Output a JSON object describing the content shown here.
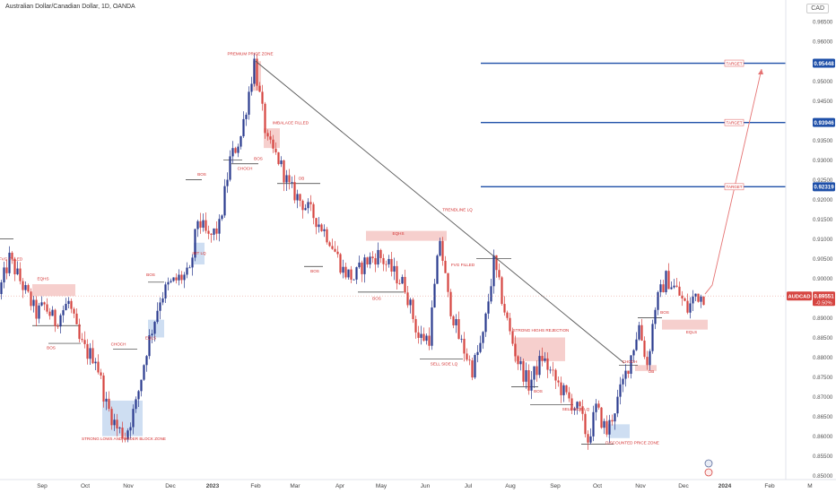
{
  "header": {
    "title": "Australian Dollar/Canadian Dollar, 1D, OANDA",
    "currency": "CAD"
  },
  "colors": {
    "up": "#2b3c8f",
    "down": "#d64541",
    "level": "#1e4fa8",
    "trendline": "#555555",
    "zone_red": "#f4c7c4",
    "zone_blue": "#c6d8f0",
    "label_red": "#d32f2f"
  },
  "chart_data": {
    "type": "candlestick",
    "symbol": "AUDCAD",
    "x_labels": [
      "Sep",
      "Oct",
      "Nov",
      "Dec",
      "2023",
      "Feb",
      "Mar",
      "Apr",
      "May",
      "Jun",
      "Jul",
      "Aug",
      "Sep",
      "Oct",
      "Nov",
      "Dec",
      "2024",
      "Feb",
      "M"
    ],
    "y_ticks": [
      "0.96500",
      "0.96000",
      "0.95500",
      "0.95000",
      "0.94500",
      "0.94000",
      "0.93500",
      "0.93000",
      "0.92500",
      "0.92000",
      "0.91500",
      "0.91000",
      "0.90500",
      "0.90000",
      "0.89500",
      "0.89000",
      "0.88500",
      "0.88000",
      "0.87500",
      "0.87000",
      "0.86500",
      "0.86000",
      "0.85500",
      "0.85000"
    ],
    "ylim": [
      0.849,
      0.9705
    ],
    "anchors": [
      {
        "i": 0,
        "p": 0.896
      },
      {
        "i": 4,
        "p": 0.905
      },
      {
        "i": 9,
        "p": 0.898
      },
      {
        "i": 14,
        "p": 0.891
      },
      {
        "i": 17,
        "p": 0.893
      },
      {
        "i": 21,
        "p": 0.889
      },
      {
        "i": 26,
        "p": 0.894
      },
      {
        "i": 30,
        "p": 0.884
      },
      {
        "i": 33,
        "p": 0.881
      },
      {
        "i": 36,
        "p": 0.88
      },
      {
        "i": 40,
        "p": 0.868
      },
      {
        "i": 44,
        "p": 0.862
      },
      {
        "i": 47,
        "p": 0.86
      },
      {
        "i": 51,
        "p": 0.868
      },
      {
        "i": 55,
        "p": 0.882
      },
      {
        "i": 60,
        "p": 0.895
      },
      {
        "i": 63,
        "p": 0.898
      },
      {
        "i": 67,
        "p": 0.9
      },
      {
        "i": 71,
        "p": 0.901
      },
      {
        "i": 74,
        "p": 0.915
      },
      {
        "i": 78,
        "p": 0.91
      },
      {
        "i": 82,
        "p": 0.913
      },
      {
        "i": 86,
        "p": 0.93
      },
      {
        "i": 90,
        "p": 0.936
      },
      {
        "i": 94,
        "p": 0.951
      },
      {
        "i": 95,
        "p": 0.955
      },
      {
        "i": 97,
        "p": 0.946
      },
      {
        "i": 100,
        "p": 0.934
      },
      {
        "i": 104,
        "p": 0.93
      },
      {
        "i": 108,
        "p": 0.923
      },
      {
        "i": 113,
        "p": 0.919
      },
      {
        "i": 118,
        "p": 0.915
      },
      {
        "i": 123,
        "p": 0.91
      },
      {
        "i": 128,
        "p": 0.902
      },
      {
        "i": 132,
        "p": 0.9
      },
      {
        "i": 136,
        "p": 0.904
      },
      {
        "i": 141,
        "p": 0.906
      },
      {
        "i": 146,
        "p": 0.902
      },
      {
        "i": 151,
        "p": 0.898
      },
      {
        "i": 156,
        "p": 0.885
      },
      {
        "i": 160,
        "p": 0.885
      },
      {
        "i": 164,
        "p": 0.91
      },
      {
        "i": 167,
        "p": 0.895
      },
      {
        "i": 171,
        "p": 0.885
      },
      {
        "i": 176,
        "p": 0.877
      },
      {
        "i": 180,
        "p": 0.885
      },
      {
        "i": 184,
        "p": 0.904
      },
      {
        "i": 187,
        "p": 0.895
      },
      {
        "i": 190,
        "p": 0.886
      },
      {
        "i": 193,
        "p": 0.879
      },
      {
        "i": 197,
        "p": 0.873
      },
      {
        "i": 202,
        "p": 0.88
      },
      {
        "i": 206,
        "p": 0.875
      },
      {
        "i": 211,
        "p": 0.87
      },
      {
        "i": 216,
        "p": 0.866
      },
      {
        "i": 219,
        "p": 0.859
      },
      {
        "i": 222,
        "p": 0.867
      },
      {
        "i": 226,
        "p": 0.861
      },
      {
        "i": 230,
        "p": 0.869
      },
      {
        "i": 234,
        "p": 0.878
      },
      {
        "i": 238,
        "p": 0.888
      },
      {
        "i": 241,
        "p": 0.878
      },
      {
        "i": 244,
        "p": 0.893
      },
      {
        "i": 248,
        "p": 0.9
      },
      {
        "i": 252,
        "p": 0.897
      },
      {
        "i": 256,
        "p": 0.892
      },
      {
        "i": 259,
        "p": 0.896
      },
      {
        "i": 261,
        "p": 0.8955
      }
    ],
    "price_levels": [
      {
        "price": 0.95448,
        "label": "0.95448",
        "target_label": "TARGET"
      },
      {
        "price": 0.93946,
        "label": "0.93946",
        "target_label": "TARGET"
      },
      {
        "price": 0.92319,
        "label": "0.92319",
        "target_label": "TARGET"
      }
    ],
    "current_price": {
      "symbol": "AUDCAD",
      "price": "0.89551",
      "change": "-0.50%",
      "value": 0.89551
    },
    "trendline": [
      {
        "i": 95,
        "p": 0.955
      },
      {
        "i": 232,
        "p": 0.8785
      }
    ],
    "projection": [
      {
        "i": 262,
        "p": 0.896
      },
      {
        "i": 283,
        "p": 0.953
      }
    ],
    "zones": [
      {
        "type": "red",
        "i1": 12,
        "i2": 28,
        "p1": 0.8955,
        "p2": 0.8985
      },
      {
        "type": "blue",
        "i1": 38,
        "i2": 53,
        "p1": 0.86,
        "p2": 0.869
      },
      {
        "type": "blue",
        "i1": 55,
        "i2": 61,
        "p1": 0.885,
        "p2": 0.8895
      },
      {
        "type": "blue",
        "i1": 72,
        "i2": 76,
        "p1": 0.9035,
        "p2": 0.909
      },
      {
        "type": "red",
        "i1": 94,
        "i2": 97,
        "p1": 0.9475,
        "p2": 0.955
      },
      {
        "type": "red",
        "i1": 98,
        "i2": 104,
        "p1": 0.933,
        "p2": 0.938
      },
      {
        "type": "red",
        "i1": 136,
        "i2": 166,
        "p1": 0.9095,
        "p2": 0.912
      },
      {
        "type": "red",
        "i1": 191,
        "i2": 210,
        "p1": 0.879,
        "p2": 0.885
      },
      {
        "type": "blue",
        "i1": 226,
        "i2": 234,
        "p1": 0.8595,
        "p2": 0.863
      },
      {
        "type": "red",
        "i1": 236,
        "i2": 244,
        "p1": 0.8765,
        "p2": 0.878
      },
      {
        "type": "red",
        "i1": 246,
        "i2": 263,
        "p1": 0.887,
        "p2": 0.8895
      }
    ],
    "structure_lines": [
      {
        "i1": 0,
        "i2": 5,
        "p": 0.91
      },
      {
        "i1": 12,
        "i2": 30,
        "p": 0.888
      },
      {
        "i1": 18,
        "i2": 30,
        "p": 0.8835
      },
      {
        "i1": 42,
        "i2": 51,
        "p": 0.882
      },
      {
        "i1": 55,
        "i2": 61,
        "p": 0.899
      },
      {
        "i1": 69,
        "i2": 75,
        "p": 0.925
      },
      {
        "i1": 83,
        "i2": 90,
        "p": 0.93
      },
      {
        "i1": 86,
        "i2": 96,
        "p": 0.929
      },
      {
        "i1": 103,
        "i2": 119,
        "p": 0.924
      },
      {
        "i1": 113,
        "i2": 120,
        "p": 0.903
      },
      {
        "i1": 133,
        "i2": 150,
        "p": 0.8965
      },
      {
        "i1": 156,
        "i2": 172,
        "p": 0.8795
      },
      {
        "i1": 177,
        "i2": 190,
        "p": 0.905
      },
      {
        "i1": 190,
        "i2": 200,
        "p": 0.8725
      },
      {
        "i1": 197,
        "i2": 213,
        "p": 0.868
      },
      {
        "i1": 216,
        "i2": 228,
        "p": 0.858
      },
      {
        "i1": 230,
        "i2": 237,
        "p": 0.878
      },
      {
        "i1": 237,
        "i2": 246,
        "p": 0.89
      }
    ],
    "annotations": [
      {
        "text": "FVG FILLED",
        "i": 4,
        "p": 0.9045
      },
      {
        "text": "EQHS",
        "i": 16,
        "p": 0.8995
      },
      {
        "text": "BOS",
        "i": 19,
        "p": 0.882
      },
      {
        "text": "CHOCH",
        "i": 44,
        "p": 0.883
      },
      {
        "text": "EQLS",
        "i": 56,
        "p": 0.8845
      },
      {
        "text": "STRONG LOWS AND ORDER BLOCK ZONE",
        "i": 46,
        "p": 0.859
      },
      {
        "text": "BOS",
        "i": 56,
        "p": 0.9005
      },
      {
        "text": "IMT LQ",
        "i": 74,
        "p": 0.906
      },
      {
        "text": "BOS",
        "i": 75,
        "p": 0.926
      },
      {
        "text": "PREMIUM PRICE ZONE",
        "i": 93,
        "p": 0.9565
      },
      {
        "text": "IMBALACE FILLED",
        "i": 108,
        "p": 0.939
      },
      {
        "text": "CHOCH",
        "i": 91,
        "p": 0.9275
      },
      {
        "text": "BOS",
        "i": 96,
        "p": 0.93
      },
      {
        "text": "OB",
        "i": 112,
        "p": 0.925
      },
      {
        "text": "BOS",
        "i": 117,
        "p": 0.9015
      },
      {
        "text": "EQHS",
        "i": 148,
        "p": 0.911
      },
      {
        "text": "BOS",
        "i": 140,
        "p": 0.8945
      },
      {
        "text": "TRENDLINE LQ",
        "i": 170,
        "p": 0.917
      },
      {
        "text": "FVG FILLED",
        "i": 172,
        "p": 0.903
      },
      {
        "text": "SELL SIDE LQ",
        "i": 165,
        "p": 0.878
      },
      {
        "text": "STRONG HIGHS REJECTION",
        "i": 201,
        "p": 0.8865
      },
      {
        "text": "BOS",
        "i": 200,
        "p": 0.871
      },
      {
        "text": "SELL SIDE LQ",
        "i": 214,
        "p": 0.8665
      },
      {
        "text": "DISCOUNTED PRICE ZONE",
        "i": 235,
        "p": 0.858
      },
      {
        "text": "CHOCH",
        "i": 234,
        "p": 0.8785
      },
      {
        "text": "OB",
        "i": 242,
        "p": 0.876
      },
      {
        "text": "BOS",
        "i": 247,
        "p": 0.891
      },
      {
        "text": "EQLS",
        "i": 257,
        "p": 0.886
      }
    ]
  }
}
